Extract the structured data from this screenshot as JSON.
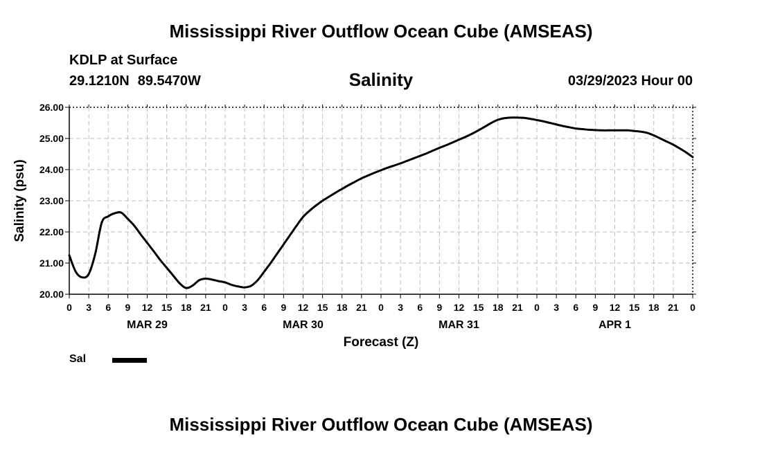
{
  "header": {
    "title": "Mississippi River Outflow Ocean Cube (AMSEAS)",
    "location_name": "KDLP at Surface",
    "latitude": "29.1210N",
    "longitude": "89.5470W",
    "chart_title": "Salinity",
    "run_date": "03/29/2023 Hour 00"
  },
  "legend": {
    "label": "Sal",
    "color": "#000000"
  },
  "footer": {
    "title": "Mississippi River Outflow Ocean Cube (AMSEAS)"
  },
  "chart_data": {
    "type": "line",
    "title": "Salinity",
    "xlabel": "Forecast (Z)",
    "ylabel": "Salinity (psu)",
    "ylim": [
      20,
      26
    ],
    "xlim": [
      0,
      96
    ],
    "x_unit": "forecast hour",
    "grid": true,
    "y_ticks": [
      "20.00",
      "21.00",
      "22.00",
      "23.00",
      "24.00",
      "25.00",
      "26.00"
    ],
    "x_tick_labels": [
      "0",
      "3",
      "6",
      "9",
      "12",
      "15",
      "18",
      "21",
      "0",
      "3",
      "6",
      "9",
      "12",
      "15",
      "18",
      "21",
      "0",
      "3",
      "6",
      "9",
      "12",
      "15",
      "18",
      "21",
      "0",
      "3",
      "6",
      "9",
      "12",
      "15",
      "18",
      "21",
      "0"
    ],
    "day_labels": [
      {
        "label": "MAR 29",
        "hour": 12
      },
      {
        "label": "MAR 30",
        "hour": 36
      },
      {
        "label": "MAR 31",
        "hour": 60
      },
      {
        "label": "APR 1",
        "hour": 84
      }
    ],
    "series": [
      {
        "name": "Sal",
        "x": [
          0,
          1,
          2,
          3,
          4,
          5,
          6,
          7,
          8,
          9,
          10,
          11,
          12,
          13,
          14,
          15,
          16,
          17,
          18,
          19,
          20,
          21,
          22,
          23,
          24,
          25,
          26,
          27,
          28,
          29,
          30,
          31,
          32,
          33,
          34,
          35,
          36,
          37,
          38,
          39,
          40,
          41,
          42,
          43,
          44,
          45,
          46,
          47,
          48,
          49,
          50,
          51,
          52,
          53,
          54,
          55,
          56,
          57,
          58,
          59,
          60,
          61,
          62,
          63,
          64,
          65,
          66,
          67,
          68,
          69,
          70,
          71,
          72,
          73,
          74,
          75,
          76,
          77,
          78,
          79,
          80,
          81,
          82,
          83,
          84,
          85,
          86,
          87,
          88,
          89,
          90,
          91,
          92,
          93,
          94,
          95,
          96
        ],
        "values": [
          21.25,
          20.72,
          20.54,
          20.65,
          21.3,
          22.3,
          22.5,
          22.6,
          22.62,
          22.42,
          22.2,
          21.92,
          21.65,
          21.38,
          21.1,
          20.85,
          20.6,
          20.35,
          20.2,
          20.28,
          20.45,
          20.5,
          20.47,
          20.42,
          20.38,
          20.3,
          20.25,
          20.22,
          20.27,
          20.45,
          20.72,
          21.0,
          21.3,
          21.6,
          21.9,
          22.2,
          22.48,
          22.68,
          22.85,
          23.0,
          23.13,
          23.26,
          23.38,
          23.5,
          23.61,
          23.72,
          23.81,
          23.9,
          23.98,
          24.06,
          24.13,
          24.2,
          24.28,
          24.36,
          24.44,
          24.52,
          24.61,
          24.7,
          24.78,
          24.87,
          24.96,
          25.05,
          25.15,
          25.26,
          25.38,
          25.5,
          25.6,
          25.65,
          25.67,
          25.67,
          25.66,
          25.63,
          25.59,
          25.55,
          25.5,
          25.45,
          25.4,
          25.36,
          25.32,
          25.3,
          25.28,
          25.27,
          25.26,
          25.26,
          25.26,
          25.26,
          25.26,
          25.24,
          25.22,
          25.18,
          25.1,
          25.0,
          24.9,
          24.8,
          24.68,
          24.55,
          24.4
        ]
      }
    ]
  }
}
